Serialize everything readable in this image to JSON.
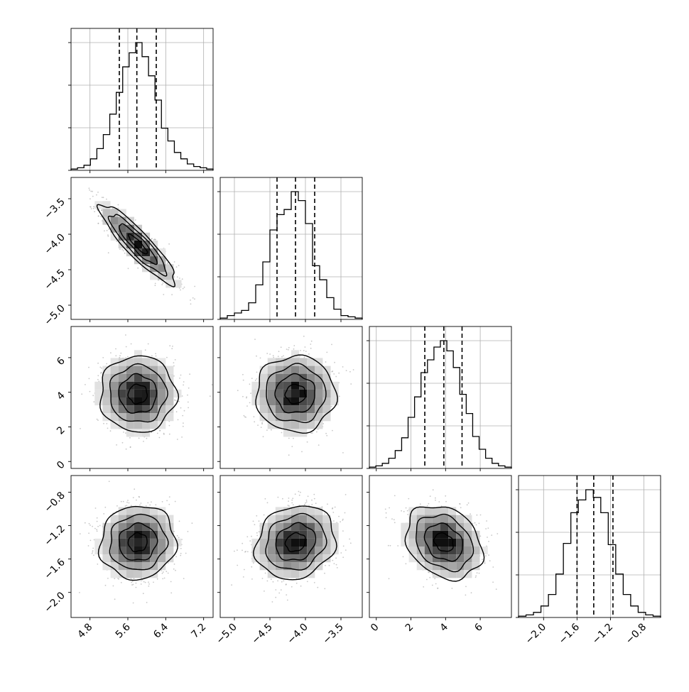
{
  "chart_data": {
    "type": "corner",
    "title": "",
    "n_params": 4,
    "grid": true,
    "params": [
      {
        "range": [
          4.4,
          7.4
        ],
        "ticks": [
          4.8,
          5.6,
          6.4,
          7.2
        ],
        "tick_labels": [
          "4.8",
          "5.6",
          "6.4",
          "7.2"
        ],
        "quantiles": [
          5.42,
          5.79,
          6.2
        ],
        "hist_counts": [
          1,
          2,
          4,
          9,
          17,
          28,
          44,
          61,
          81,
          92,
          100,
          89,
          74,
          55,
          33,
          23,
          14,
          9,
          5,
          3,
          2,
          1
        ]
      },
      {
        "range": [
          -5.2,
          -3.2
        ],
        "ticks": [
          -5.0,
          -4.5,
          -4.0,
          -3.5
        ],
        "tick_labels": [
          "−5.0",
          "−4.5",
          "−4.0",
          "−3.5"
        ],
        "quantiles": [
          -4.4,
          -4.14,
          -3.87
        ],
        "hist_counts": [
          1,
          3,
          5,
          7,
          13,
          27,
          45,
          70,
          82,
          86,
          100,
          93,
          75,
          42,
          31,
          17,
          8,
          3,
          2,
          1
        ]
      },
      {
        "range": [
          -0.4,
          7.8
        ],
        "ticks": [
          0,
          2,
          4,
          6
        ],
        "tick_labels": [
          "0",
          "2",
          "4",
          "6"
        ],
        "quantiles": [
          2.8,
          3.9,
          4.95
        ],
        "hist_counts": [
          1,
          2,
          4,
          8,
          14,
          24,
          40,
          56,
          75,
          85,
          95,
          100,
          92,
          79,
          58,
          43,
          25,
          15,
          8,
          4,
          2,
          1
        ]
      },
      {
        "range": [
          -2.3,
          -0.6
        ],
        "ticks": [
          -2.0,
          -1.6,
          -1.2,
          -0.8
        ],
        "tick_labels": [
          "−2.0",
          "−1.6",
          "−1.2",
          "−0.8"
        ],
        "quantiles": [
          -1.6,
          -1.4,
          -1.17
        ],
        "hist_counts": [
          1,
          2,
          4,
          9,
          18,
          34,
          58,
          82,
          92,
          100,
          94,
          82,
          57,
          34,
          18,
          9,
          4,
          2,
          1
        ]
      }
    ],
    "params_stats": [
      {
        "mean": 5.81,
        "sd": 0.4
      },
      {
        "mean": -4.14,
        "sd": 0.28
      },
      {
        "mean": 3.9,
        "sd": 1.1
      },
      {
        "mean": -1.4,
        "sd": 0.22
      }
    ],
    "pairs": [
      {
        "row": 1,
        "col": 0,
        "correlation": -0.9
      },
      {
        "row": 2,
        "col": 0,
        "correlation": 0.0
      },
      {
        "row": 2,
        "col": 1,
        "correlation": 0.0
      },
      {
        "row": 3,
        "col": 0,
        "correlation": 0.05
      },
      {
        "row": 3,
        "col": 1,
        "correlation": 0.15
      },
      {
        "row": 3,
        "col": 2,
        "correlation": -0.25
      }
    ],
    "contour_levels_sigma": [
      0.5,
      1.0,
      1.5,
      2.0
    ],
    "colors": {
      "line": "#000000",
      "grid": "#b0b0b0",
      "points": "#9a9a9a",
      "frame": "#000000"
    }
  }
}
